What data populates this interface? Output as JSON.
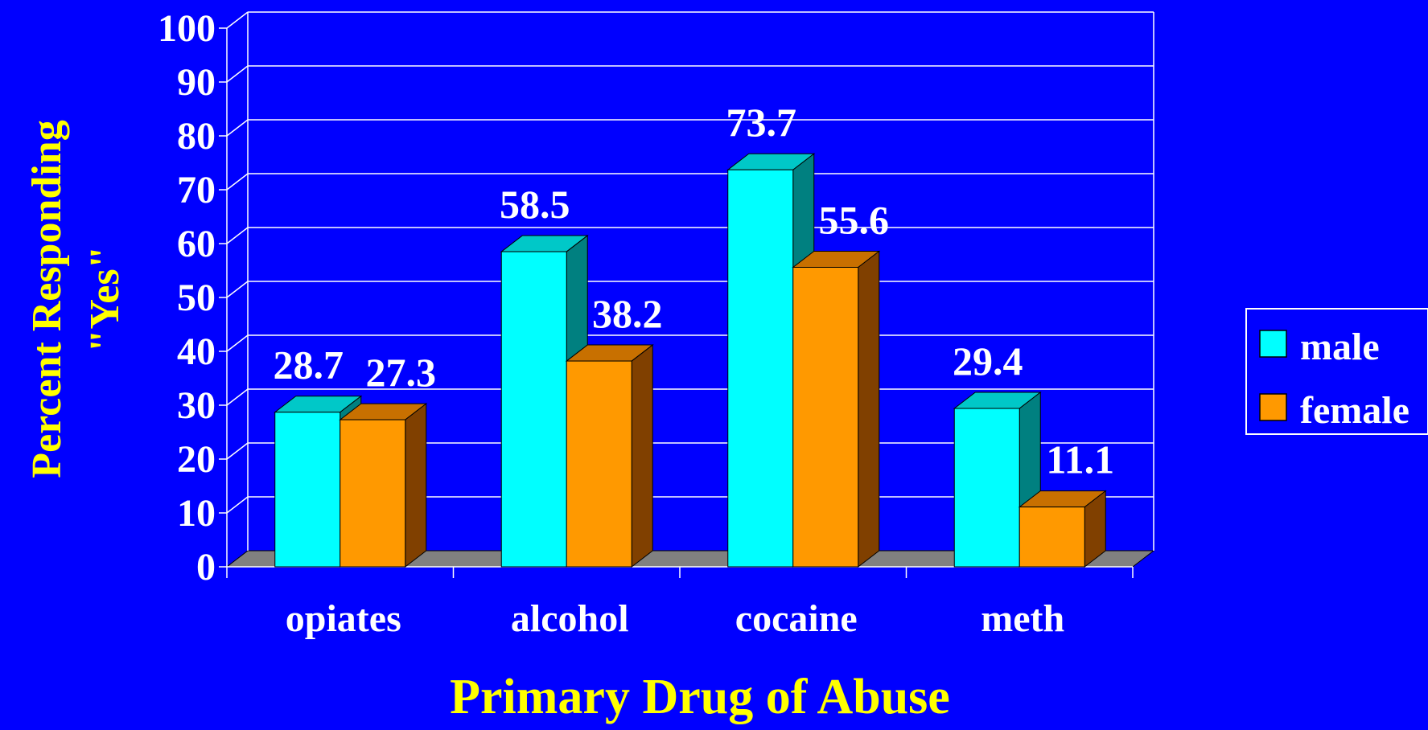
{
  "chart_data": {
    "type": "bar",
    "categories": [
      "opiates",
      "alcohol",
      "cocaine",
      "meth"
    ],
    "series": [
      {
        "name": "male",
        "values": [
          28.7,
          58.5,
          73.7,
          29.4
        ]
      },
      {
        "name": "female",
        "values": [
          27.3,
          38.2,
          55.6,
          11.1
        ]
      }
    ],
    "data_labels": [
      [
        "28.7",
        "58.5",
        "73.7",
        "29.4"
      ],
      [
        "27.3",
        "38.2",
        "55.6",
        "11.1"
      ]
    ],
    "ylabel_line1": "Percent Responding",
    "ylabel_line2": "\"Yes\"",
    "xlabel": "Primary Drug of Abuse",
    "ylim": [
      0,
      100
    ],
    "yticks": [
      "0",
      "10",
      "20",
      "30",
      "40",
      "50",
      "60",
      "70",
      "80",
      "90",
      "100"
    ],
    "grid": true,
    "legend_position": "right",
    "colors": {
      "background": "#0000ff",
      "male_front": "#00ffff",
      "male_top": "#00c8c8",
      "male_side": "#008080",
      "female_front": "#ff9900",
      "female_top": "#c87000",
      "female_side": "#804000",
      "floor": "#808080",
      "grid": "#ffffff",
      "axis_label": "#ffff00",
      "text": "#ffffff"
    }
  }
}
